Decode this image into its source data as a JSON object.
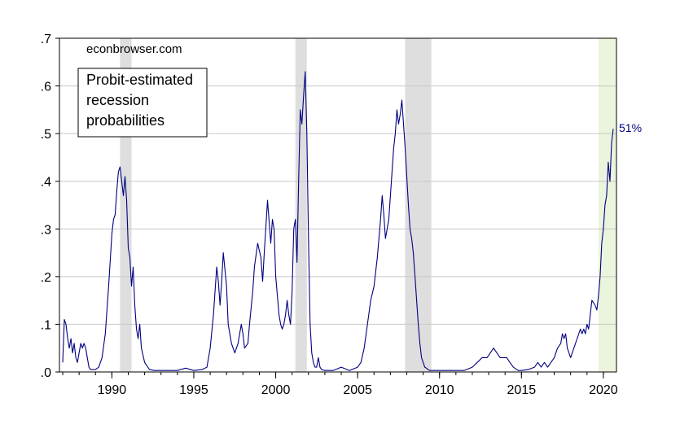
{
  "chart_data": {
    "type": "line",
    "title": "",
    "xlabel": "",
    "ylabel": "",
    "xlim": [
      1986.8,
      2020.8
    ],
    "ylim": [
      0,
      0.7
    ],
    "y_ticks": [
      {
        "value": 0.0,
        "label": ".0"
      },
      {
        "value": 0.1,
        "label": ".1"
      },
      {
        "value": 0.2,
        "label": ".2"
      },
      {
        "value": 0.3,
        "label": ".3"
      },
      {
        "value": 0.4,
        "label": ".4"
      },
      {
        "value": 0.5,
        "label": ".5"
      },
      {
        "value": 0.6,
        "label": ".6"
      },
      {
        "value": 0.7,
        "label": ".7"
      }
    ],
    "x_ticks": [
      {
        "value": 1990,
        "label": "1990"
      },
      {
        "value": 1995,
        "label": "1995"
      },
      {
        "value": 2000,
        "label": "2000"
      },
      {
        "value": 2005,
        "label": "2005"
      },
      {
        "value": 2010,
        "label": "2010"
      },
      {
        "value": 2015,
        "label": "2015"
      },
      {
        "value": 2020,
        "label": "2020"
      }
    ],
    "grid": true,
    "recession_shading": [
      {
        "start": 1990.5,
        "end": 1991.2,
        "color": "#dedede"
      },
      {
        "start": 2001.2,
        "end": 2001.9,
        "color": "#dedede"
      },
      {
        "start": 2007.9,
        "end": 2009.5,
        "color": "#dedede"
      }
    ],
    "forecast_shading": {
      "start": 2019.7,
      "end": 2020.8,
      "color": "#ebf4dc"
    },
    "series": [
      {
        "color": "#000080",
        "x": [
          1987.0,
          1987.1,
          1987.2,
          1987.3,
          1987.4,
          1987.5,
          1987.6,
          1987.7,
          1987.8,
          1987.9,
          1988.0,
          1988.1,
          1988.2,
          1988.3,
          1988.4,
          1988.5,
          1988.6,
          1988.7,
          1988.8,
          1988.9,
          1989.0,
          1989.2,
          1989.4,
          1989.6,
          1989.8,
          1990.0,
          1990.1,
          1990.2,
          1990.3,
          1990.4,
          1990.5,
          1990.6,
          1990.7,
          1990.8,
          1990.9,
          1991.0,
          1991.1,
          1991.2,
          1991.3,
          1991.4,
          1991.5,
          1991.6,
          1991.7,
          1991.8,
          1992.0,
          1992.3,
          1992.6,
          1993.0,
          1994.0,
          1994.5,
          1995.0,
          1995.5,
          1995.8,
          1996.0,
          1996.2,
          1996.4,
          1996.5,
          1996.6,
          1996.7,
          1996.8,
          1997.0,
          1997.1,
          1997.3,
          1997.5,
          1997.7,
          1997.9,
          1998.0,
          1998.1,
          1998.3,
          1998.4,
          1998.6,
          1998.7,
          1998.9,
          1999.1,
          1999.2,
          1999.3,
          1999.5,
          1999.7,
          1999.8,
          1999.9,
          2000.0,
          2000.1,
          2000.2,
          2000.3,
          2000.4,
          2000.5,
          2000.6,
          2000.7,
          2000.8,
          2000.9,
          2001.0,
          2001.1,
          2001.2,
          2001.3,
          2001.4,
          2001.5,
          2001.6,
          2001.7,
          2001.8,
          2001.9,
          2002.0,
          2002.1,
          2002.2,
          2002.3,
          2002.4,
          2002.5,
          2002.6,
          2002.7,
          2002.8,
          2003.0,
          2003.5,
          2004.0,
          2004.5,
          2005.0,
          2005.2,
          2005.4,
          2005.6,
          2005.8,
          2006.0,
          2006.2,
          2006.4,
          2006.5,
          2006.6,
          2006.7,
          2006.8,
          2006.9,
          2007.0,
          2007.1,
          2007.2,
          2007.3,
          2007.4,
          2007.5,
          2007.6,
          2007.7,
          2007.8,
          2007.9,
          2008.0,
          2008.1,
          2008.2,
          2008.3,
          2008.4,
          2008.5,
          2008.6,
          2008.7,
          2008.8,
          2008.9,
          2009.0,
          2009.1,
          2009.2,
          2009.3,
          2009.4,
          2009.6,
          2009.8,
          2010.0,
          2010.5,
          2011.0,
          2011.5,
          2012.0,
          2012.3,
          2012.6,
          2012.9,
          2013.1,
          2013.3,
          2013.5,
          2013.7,
          2013.9,
          2014.1,
          2014.3,
          2014.5,
          2014.8,
          2015.0,
          2015.4,
          2015.8,
          2016.0,
          2016.2,
          2016.4,
          2016.6,
          2016.8,
          2017.0,
          2017.2,
          2017.4,
          2017.5,
          2017.6,
          2017.7,
          2017.8,
          2017.9,
          2018.0,
          2018.2,
          2018.4,
          2018.6,
          2018.7,
          2018.8,
          2018.9,
          2019.0,
          2019.1,
          2019.2,
          2019.3,
          2019.5,
          2019.6,
          2019.7,
          2019.8,
          2019.9,
          2020.0,
          2020.1,
          2020.2,
          2020.3,
          2020.4,
          2020.5,
          2020.6
        ],
        "values": [
          0.02,
          0.11,
          0.1,
          0.07,
          0.05,
          0.07,
          0.04,
          0.06,
          0.03,
          0.02,
          0.04,
          0.06,
          0.05,
          0.06,
          0.05,
          0.03,
          0.01,
          0.005,
          0.005,
          0.005,
          0.005,
          0.01,
          0.03,
          0.08,
          0.18,
          0.29,
          0.32,
          0.33,
          0.38,
          0.42,
          0.43,
          0.4,
          0.37,
          0.41,
          0.36,
          0.26,
          0.24,
          0.18,
          0.22,
          0.14,
          0.09,
          0.07,
          0.1,
          0.05,
          0.02,
          0.005,
          0.003,
          0.003,
          0.003,
          0.008,
          0.003,
          0.005,
          0.01,
          0.05,
          0.12,
          0.22,
          0.19,
          0.14,
          0.19,
          0.25,
          0.18,
          0.1,
          0.06,
          0.04,
          0.06,
          0.1,
          0.08,
          0.05,
          0.06,
          0.1,
          0.17,
          0.22,
          0.27,
          0.24,
          0.19,
          0.25,
          0.36,
          0.27,
          0.32,
          0.3,
          0.2,
          0.16,
          0.12,
          0.1,
          0.09,
          0.1,
          0.12,
          0.15,
          0.12,
          0.1,
          0.17,
          0.3,
          0.32,
          0.23,
          0.4,
          0.55,
          0.52,
          0.58,
          0.63,
          0.5,
          0.28,
          0.1,
          0.04,
          0.02,
          0.01,
          0.01,
          0.03,
          0.01,
          0.005,
          0.003,
          0.003,
          0.01,
          0.003,
          0.01,
          0.02,
          0.05,
          0.1,
          0.15,
          0.18,
          0.24,
          0.32,
          0.37,
          0.33,
          0.28,
          0.3,
          0.32,
          0.37,
          0.42,
          0.47,
          0.5,
          0.55,
          0.52,
          0.54,
          0.57,
          0.52,
          0.47,
          0.41,
          0.35,
          0.3,
          0.28,
          0.25,
          0.2,
          0.15,
          0.1,
          0.06,
          0.03,
          0.02,
          0.01,
          0.008,
          0.005,
          0.003,
          0.003,
          0.003,
          0.003,
          0.003,
          0.003,
          0.003,
          0.01,
          0.02,
          0.03,
          0.03,
          0.04,
          0.05,
          0.04,
          0.03,
          0.03,
          0.03,
          0.02,
          0.01,
          0.003,
          0.003,
          0.005,
          0.01,
          0.02,
          0.01,
          0.02,
          0.01,
          0.02,
          0.03,
          0.05,
          0.06,
          0.08,
          0.07,
          0.08,
          0.05,
          0.04,
          0.03,
          0.05,
          0.07,
          0.09,
          0.08,
          0.09,
          0.08,
          0.1,
          0.09,
          0.12,
          0.15,
          0.14,
          0.13,
          0.16,
          0.2,
          0.27,
          0.3,
          0.35,
          0.37,
          0.44,
          0.4,
          0.48,
          0.51
        ]
      }
    ],
    "annotations": {
      "watermark": "econbrowser.com",
      "label_box": [
        "Probit-estimated",
        "recession",
        "probabilities"
      ],
      "end_label": "51%"
    }
  }
}
